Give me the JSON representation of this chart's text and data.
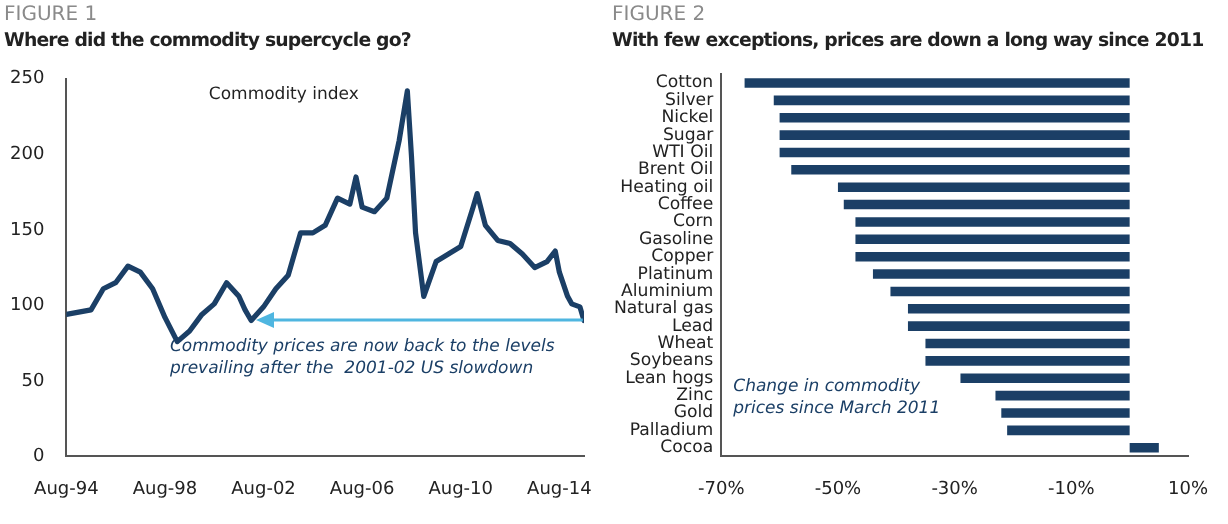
{
  "chart_data": [
    {
      "type": "line",
      "subtitle": "FIGURE 1",
      "title": "Where did the commodity supercycle go?",
      "x": [
        "1994-08",
        "1995-08",
        "1996-02",
        "1996-08",
        "1997-02",
        "1997-08",
        "1998-02",
        "1998-08",
        "1999-02",
        "1999-08",
        "2000-02",
        "2000-08",
        "2001-02",
        "2001-08",
        "2001-11",
        "2002-02",
        "2002-08",
        "2003-02",
        "2003-08",
        "2004-02",
        "2004-08",
        "2005-02",
        "2005-08",
        "2006-02",
        "2006-05",
        "2006-08",
        "2007-02",
        "2007-08",
        "2008-02",
        "2008-06",
        "2008-08",
        "2008-10",
        "2009-02",
        "2009-08",
        "2010-02",
        "2010-08",
        "2011-02",
        "2011-04",
        "2011-08",
        "2012-02",
        "2012-08",
        "2013-02",
        "2013-08",
        "2014-02",
        "2014-06",
        "2014-08",
        "2014-12",
        "2015-02",
        "2015-06",
        "2015-08"
      ],
      "series": [
        {
          "color": "#1b3f66",
          "values": [
            94,
            97,
            111,
            115,
            126,
            122,
            111,
            92,
            76,
            83,
            94,
            101,
            115,
            106,
            97,
            90,
            99,
            111,
            120,
            148,
            148,
            153,
            171,
            167,
            185,
            165,
            162,
            171,
            209,
            242,
            199,
            148,
            106,
            129,
            134,
            139,
            165,
            174,
            153,
            143,
            141,
            134,
            125,
            129,
            136,
            122,
            106,
            101,
            99,
            90
          ]
        }
      ],
      "xlim": [
        "1994-08",
        "2015-08"
      ],
      "xticks": [
        {
          "value": "1994-08",
          "label": "Aug-94"
        },
        {
          "value": "1998-08",
          "label": "Aug-98"
        },
        {
          "value": "2002-08",
          "label": "Aug-02"
        },
        {
          "value": "2006-08",
          "label": "Aug-06"
        },
        {
          "value": "2010-08",
          "label": "Aug-10"
        },
        {
          "value": "2014-08",
          "label": "Aug-14"
        }
      ],
      "ylim": [
        0,
        250
      ],
      "yticks": [
        0,
        50,
        100,
        150,
        200,
        250
      ],
      "grid": false,
      "legend": false,
      "marker": "none",
      "line_style": "solid",
      "annotations": [
        "Commodity index",
        "Commodity prices are now back to the levels prevailing after the  2001-02 US slowdown"
      ]
    },
    {
      "type": "bar",
      "orientation": "horizontal",
      "subtitle": "FIGURE 2",
      "title": "With few exceptions, prices are down a long way since 2011",
      "categories": [
        "Cotton",
        "Silver",
        "Nickel",
        "Sugar",
        "WTI Oil",
        "Brent Oil",
        "Heating oil",
        "Coffee",
        "Corn",
        "Gasoline",
        "Copper",
        "Platinum",
        "Aluminium",
        "Natural gas",
        "Lead",
        "Wheat",
        "Soybeans",
        "Lean hogs",
        "Zinc",
        "Gold",
        "Palladium",
        "Cocoa"
      ],
      "values": [
        -66,
        -61,
        -60,
        -60,
        -60,
        -58,
        -50,
        -49,
        -47,
        -47,
        -47,
        -44,
        -41,
        -38,
        -38,
        -35,
        -35,
        -29,
        -23,
        -22,
        -21,
        5
      ],
      "color": "#1b3f66",
      "xlim": [
        -70,
        10
      ],
      "xticks": [
        {
          "value": -70,
          "label": "-70%"
        },
        {
          "value": -50,
          "label": "-50%"
        },
        {
          "value": -30,
          "label": "-30%"
        },
        {
          "value": -10,
          "label": "-10%"
        },
        {
          "value": 10,
          "label": "10%"
        }
      ],
      "grid": false,
      "legend": false,
      "annotations": [
        "Change in commodity prices since March 2011"
      ]
    }
  ]
}
